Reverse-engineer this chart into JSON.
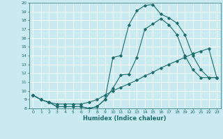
{
  "xlabel": "Humidex (Indice chaleur)",
  "xlim": [
    -0.5,
    23.5
  ],
  "ylim": [
    8,
    20
  ],
  "yticks": [
    8,
    9,
    10,
    11,
    12,
    13,
    14,
    15,
    16,
    17,
    18,
    19,
    20
  ],
  "xticks": [
    0,
    1,
    2,
    3,
    4,
    5,
    6,
    7,
    8,
    9,
    10,
    11,
    12,
    13,
    14,
    15,
    16,
    17,
    18,
    19,
    20,
    21,
    22,
    23
  ],
  "xtick_labels": [
    "0",
    "1",
    "2",
    "3",
    "4",
    "5",
    "6",
    "7",
    "8",
    "9",
    "10",
    "11",
    "12",
    "13",
    "14",
    "15",
    "16",
    "17",
    "18",
    "19",
    "20",
    "21",
    "22",
    "23"
  ],
  "bg_color": "#c8eaf0",
  "line_color": "#1e6b6b",
  "grid_color": "#ffffff",
  "line1_x": [
    0,
    1,
    2,
    3,
    4,
    5,
    6,
    7,
    8,
    9,
    10,
    11,
    12,
    13,
    14,
    15,
    16,
    17,
    18,
    19,
    20,
    21,
    22,
    23
  ],
  "line1_y": [
    9.5,
    9.0,
    8.7,
    8.2,
    8.2,
    8.2,
    8.2,
    8.0,
    8.2,
    9.0,
    10.3,
    11.8,
    11.9,
    13.8,
    17.0,
    17.6,
    18.2,
    17.5,
    16.4,
    14.0,
    12.4,
    11.5,
    11.5,
    11.5
  ],
  "line2_x": [
    0,
    1,
    2,
    3,
    4,
    5,
    6,
    7,
    8,
    9,
    10,
    11,
    12,
    13,
    14,
    15,
    16,
    17,
    18,
    19,
    20,
    21,
    22,
    23
  ],
  "line2_y": [
    9.5,
    9.0,
    8.7,
    8.2,
    8.2,
    8.2,
    8.2,
    8.0,
    8.2,
    9.0,
    13.8,
    14.0,
    17.5,
    19.1,
    19.7,
    19.8,
    18.7,
    18.3,
    17.7,
    16.4,
    14.0,
    12.4,
    11.5,
    11.5
  ],
  "line3_x": [
    0,
    1,
    2,
    3,
    4,
    5,
    6,
    7,
    8,
    9,
    10,
    11,
    12,
    13,
    14,
    15,
    16,
    17,
    18,
    19,
    20,
    21,
    22,
    23
  ],
  "line3_y": [
    9.5,
    9.0,
    8.7,
    8.5,
    8.5,
    8.5,
    8.5,
    8.7,
    9.0,
    9.5,
    10.0,
    10.4,
    10.8,
    11.2,
    11.7,
    12.1,
    12.6,
    13.0,
    13.4,
    13.8,
    14.2,
    14.5,
    14.8,
    11.5
  ]
}
